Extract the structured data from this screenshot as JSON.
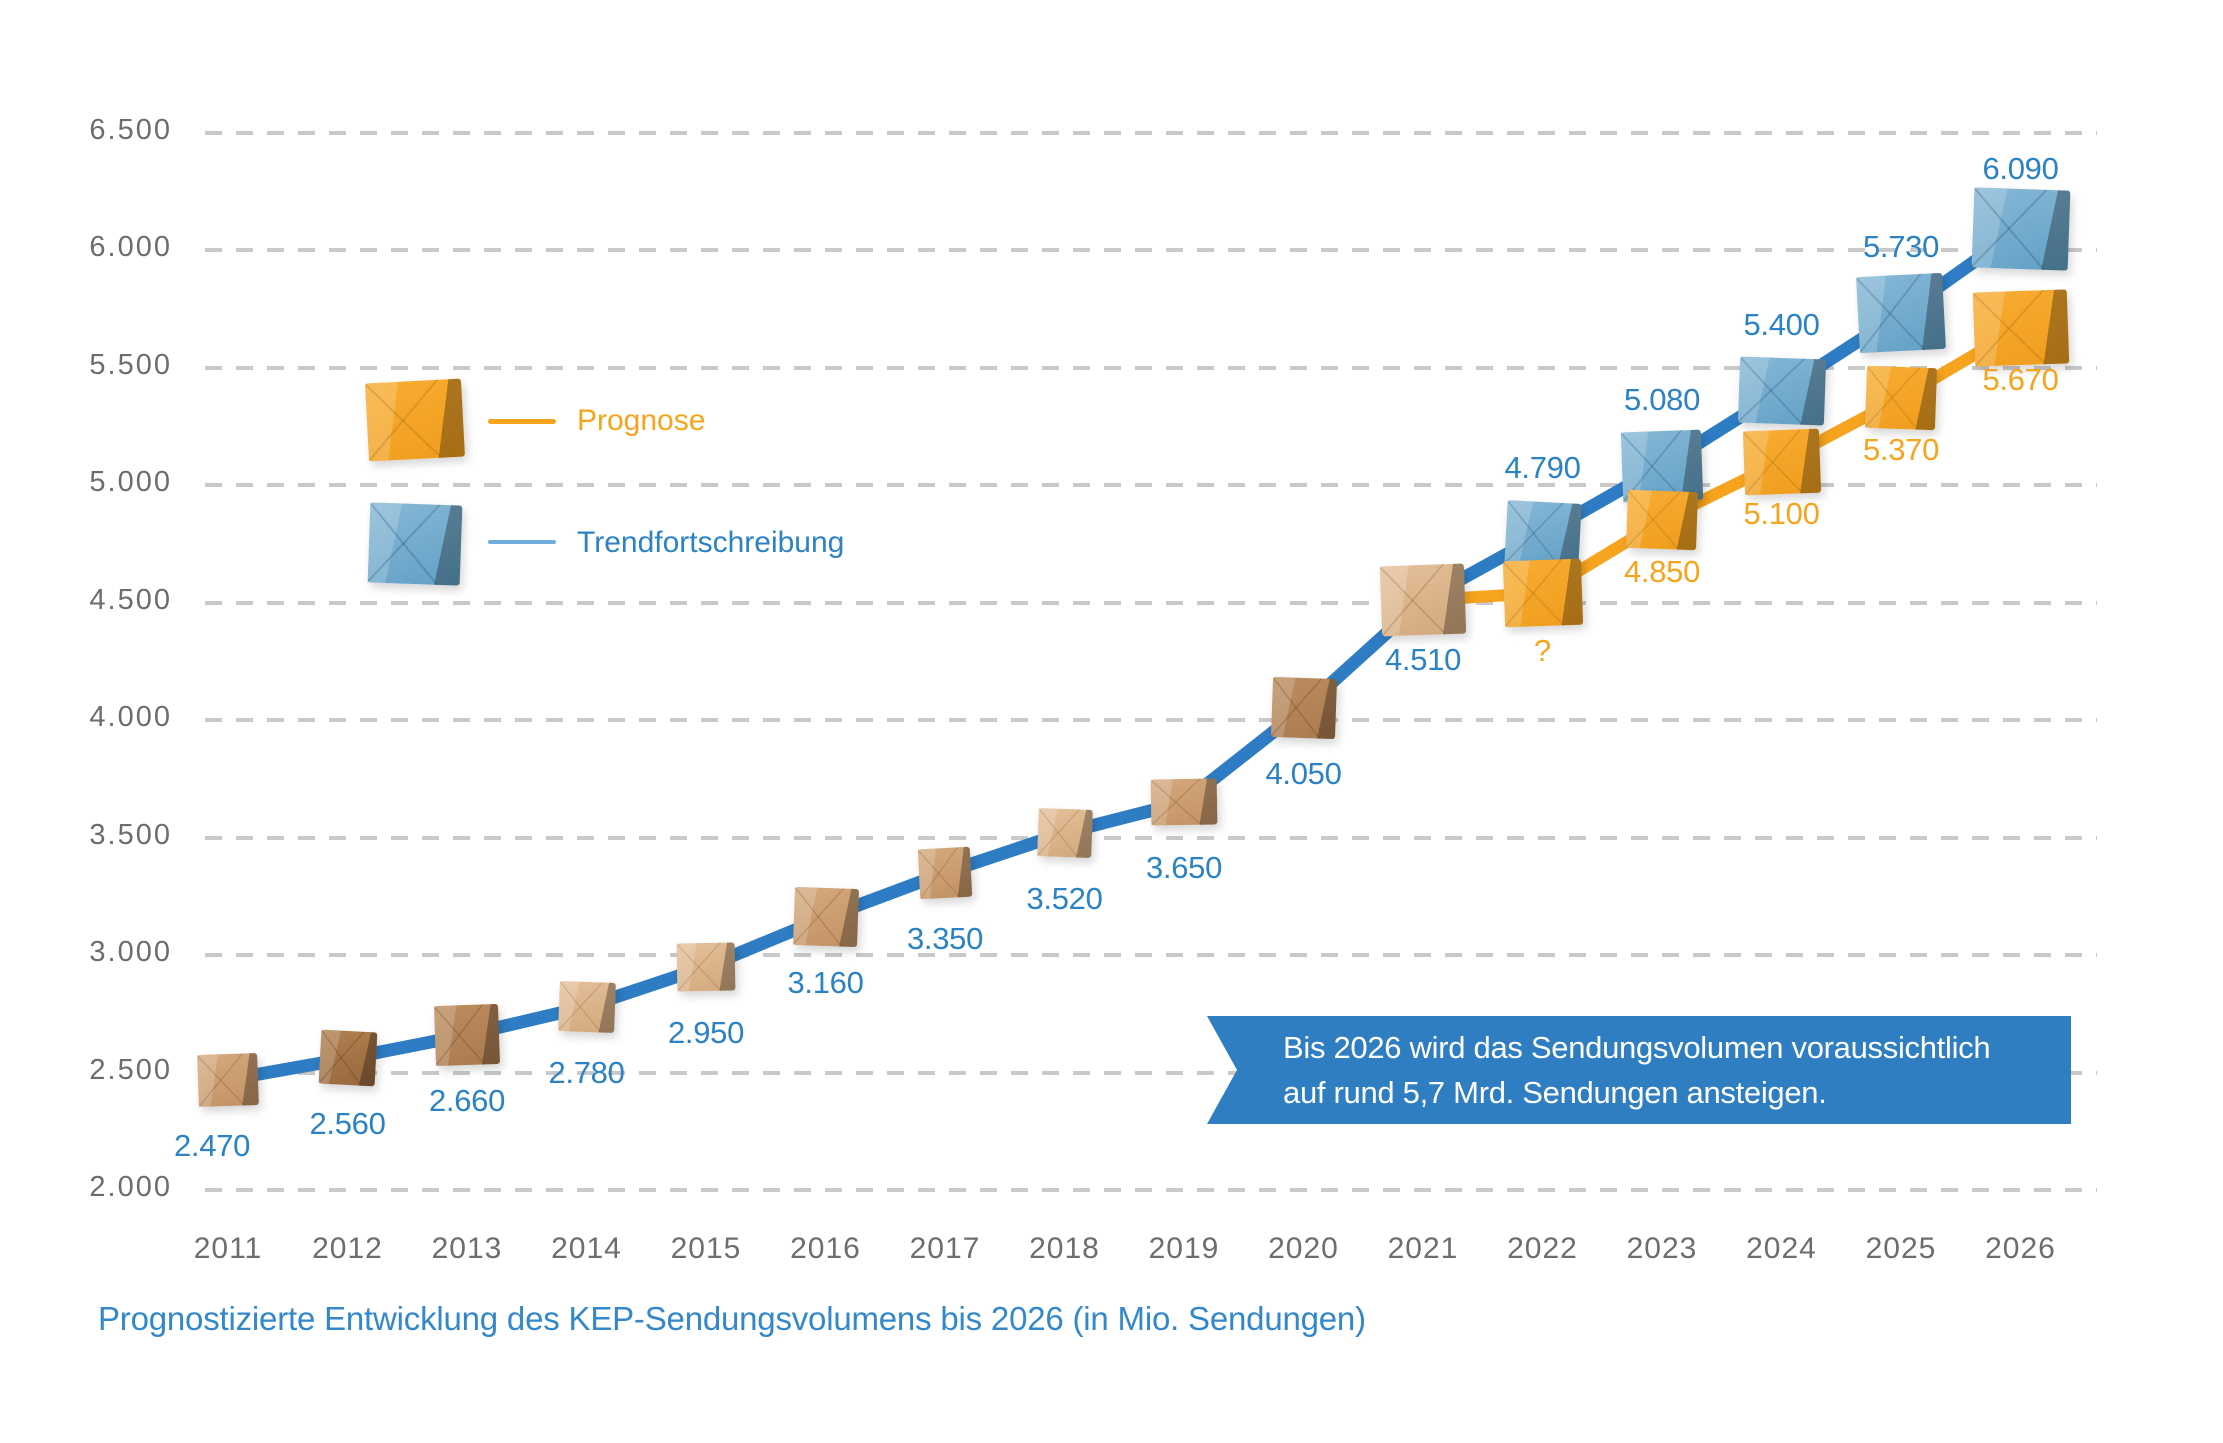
{
  "page": {
    "background": "#ffffff"
  },
  "caption": {
    "text": "Prognostizierte Entwicklung des KEP-Sendungsvolumens bis 2026 (in Mio. Sendungen)",
    "color": "#3388cb"
  },
  "callout": {
    "line1": "Bis 2026 wird das Sendungsvolumen voraussichtlich",
    "line2": "auf rund 5,7 Mrd. Sendungen ansteigen.",
    "bg_color": "#2e7ec1",
    "text_color": "#ffffff"
  },
  "legend": {
    "items": [
      {
        "label": "Prognose",
        "color": "#f6a41d",
        "swatch": "yellow-parcel-icon"
      },
      {
        "label": "Trendfortschreibung",
        "color": "#2b82c4",
        "swatch": "blue-parcel-icon"
      }
    ]
  },
  "chart_data": {
    "type": "line",
    "x": [
      2011,
      2012,
      2013,
      2014,
      2015,
      2016,
      2017,
      2018,
      2019,
      2020,
      2021,
      2022,
      2023,
      2024,
      2025,
      2026
    ],
    "series": [
      {
        "name": "Trendfortschreibung",
        "color": "#2e7cc3",
        "marker": "parcel-box",
        "values": [
          2470,
          2560,
          2660,
          2780,
          2950,
          3160,
          3350,
          3520,
          3650,
          4050,
          4510,
          4790,
          5080,
          5400,
          5730,
          6090
        ],
        "labels": [
          "2.470",
          "2.560",
          "2.660",
          "2.780",
          "2.950",
          "3.160",
          "3.350",
          "3.520",
          "3.650",
          "4.050",
          "4.510",
          "4.790",
          "5.080",
          "5.400",
          "5.730",
          "6.090"
        ]
      },
      {
        "name": "Prognose",
        "color": "#f6a41d",
        "marker": "parcel-box",
        "x": [
          2021,
          2022,
          2023,
          2024,
          2025,
          2026
        ],
        "values": [
          4510,
          null,
          4850,
          5100,
          5370,
          5670
        ],
        "labels": [
          "",
          "?",
          "4.850",
          "5.100",
          "5.370",
          "5.670"
        ]
      }
    ],
    "ylim": [
      2000,
      6500
    ],
    "yticks": [
      "2.000",
      "2.500",
      "3.000",
      "3.500",
      "4.000",
      "4.500",
      "5.000",
      "5.500",
      "6.000",
      "6.500"
    ],
    "grid": "horizontal-dashed",
    "legend_position": "upper-left-inside",
    "unit": "Mio. Sendungen"
  }
}
